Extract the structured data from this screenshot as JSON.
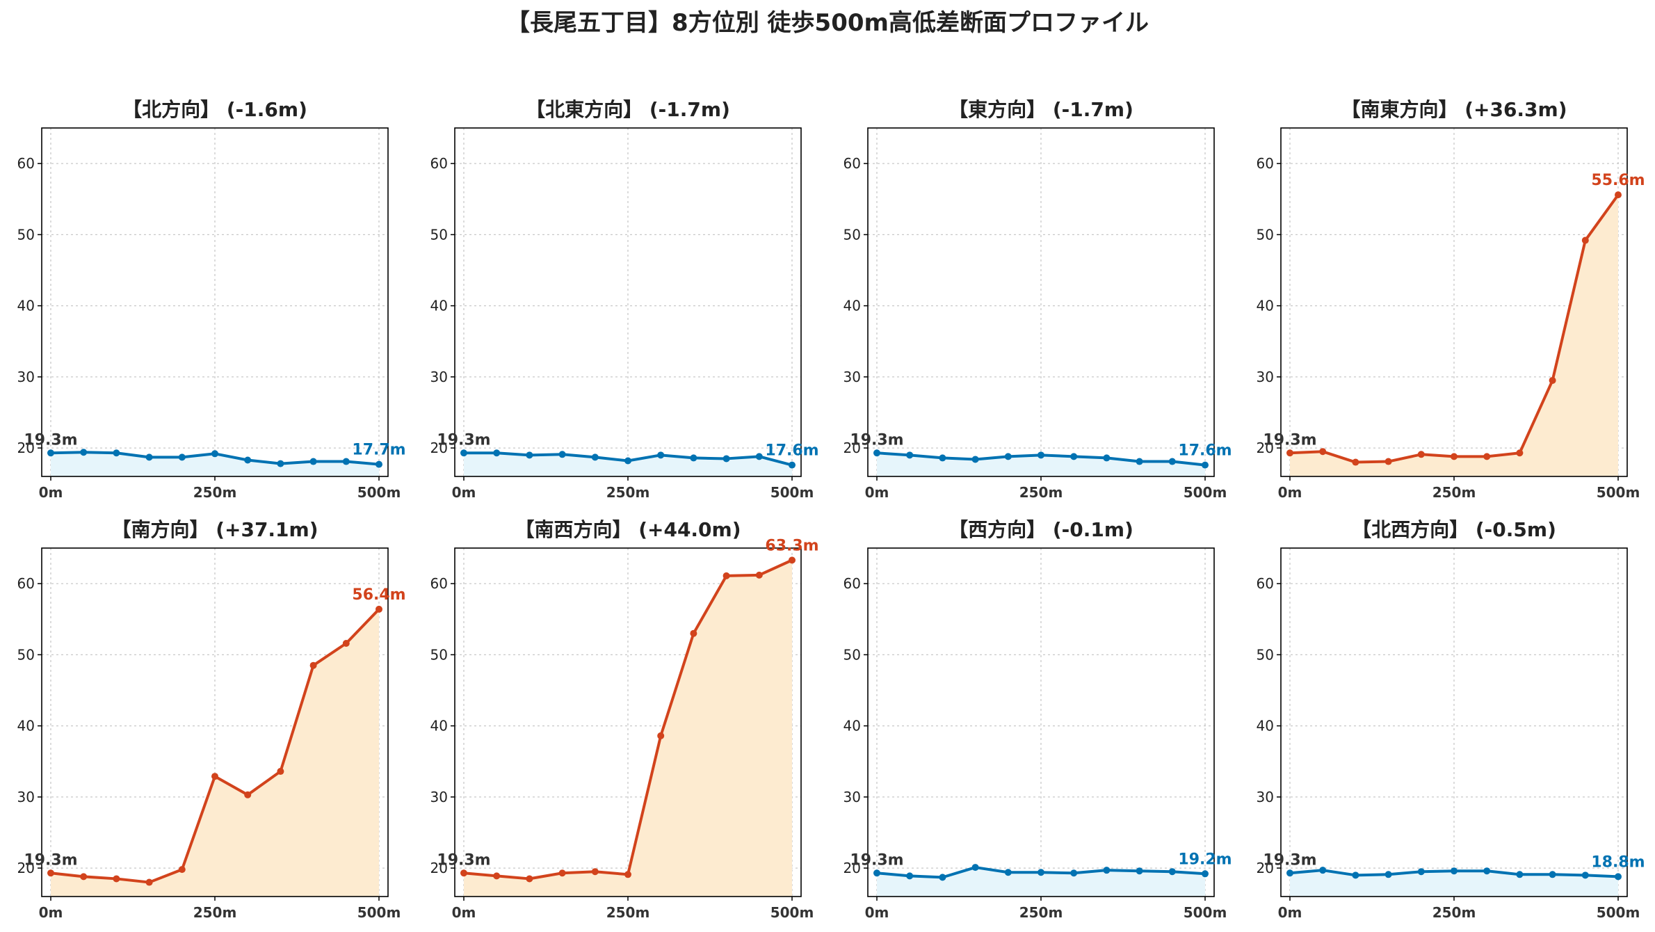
{
  "colors": {
    "down": "#0072b2",
    "down_fill": "#e6f5fb",
    "up": "#d2431c",
    "up_fill": "#fdebd0",
    "start_label": "#333333"
  },
  "chart_data": {
    "type": "line",
    "title": "【長尾五丁目】8方位別 徒歩500m高低差断面プロファイル",
    "x": [
      0,
      50,
      100,
      150,
      200,
      250,
      300,
      350,
      400,
      450,
      500
    ],
    "xtick_labels": [
      "0m",
      "250m",
      "500m"
    ],
    "xtick_values": [
      0,
      250,
      500
    ],
    "ylim": [
      16,
      65
    ],
    "yticks": [
      20,
      30,
      40,
      50,
      60
    ],
    "grid": true,
    "panels": [
      {
        "title": "【北方向】 (-1.6m)",
        "trend": "down",
        "start_label": "19.3m",
        "end_label": "17.7m",
        "values": [
          19.3,
          19.4,
          19.3,
          18.7,
          18.7,
          19.2,
          18.3,
          17.8,
          18.1,
          18.1,
          17.7
        ]
      },
      {
        "title": "【北東方向】 (-1.7m)",
        "trend": "down",
        "start_label": "19.3m",
        "end_label": "17.6m",
        "values": [
          19.3,
          19.3,
          19.0,
          19.1,
          18.7,
          18.2,
          19.0,
          18.6,
          18.5,
          18.8,
          17.6
        ]
      },
      {
        "title": "【東方向】 (-1.7m)",
        "trend": "down",
        "start_label": "19.3m",
        "end_label": "17.6m",
        "values": [
          19.3,
          19.0,
          18.6,
          18.4,
          18.8,
          19.0,
          18.8,
          18.6,
          18.1,
          18.1,
          17.6
        ]
      },
      {
        "title": "【南東方向】 (+36.3m)",
        "trend": "up",
        "start_label": "19.3m",
        "end_label": "55.6m",
        "values": [
          19.3,
          19.5,
          18.0,
          18.1,
          19.1,
          18.8,
          18.8,
          19.3,
          29.5,
          49.2,
          55.6
        ]
      },
      {
        "title": "【南方向】 (+37.1m)",
        "trend": "up",
        "start_label": "19.3m",
        "end_label": "56.4m",
        "values": [
          19.3,
          18.8,
          18.5,
          18.0,
          19.8,
          32.9,
          30.3,
          33.6,
          48.5,
          51.6,
          56.4
        ]
      },
      {
        "title": "【南西方向】 (+44.0m)",
        "trend": "up",
        "start_label": "19.3m",
        "end_label": "63.3m",
        "values": [
          19.3,
          18.9,
          18.5,
          19.3,
          19.5,
          19.1,
          38.6,
          53.0,
          61.1,
          61.2,
          63.3
        ]
      },
      {
        "title": "【西方向】 (-0.1m)",
        "trend": "down",
        "start_label": "19.3m",
        "end_label": "19.2m",
        "values": [
          19.3,
          18.9,
          18.7,
          20.1,
          19.4,
          19.4,
          19.3,
          19.7,
          19.6,
          19.5,
          19.2
        ]
      },
      {
        "title": "【北西方向】 (-0.5m)",
        "trend": "down",
        "start_label": "19.3m",
        "end_label": "18.8m",
        "values": [
          19.3,
          19.7,
          19.0,
          19.1,
          19.5,
          19.6,
          19.6,
          19.1,
          19.1,
          19.0,
          18.8
        ]
      }
    ]
  }
}
